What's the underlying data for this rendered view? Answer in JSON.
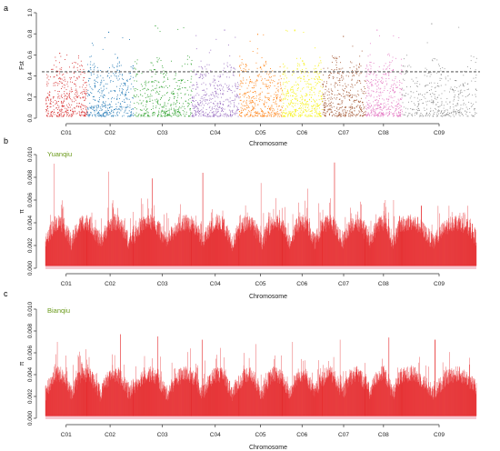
{
  "chart_data": [
    {
      "panel": "a",
      "type": "scatter",
      "xlabel": "Chromosome",
      "ylabel": "Fst",
      "ylim": [
        0,
        1.0
      ],
      "yticks": [
        0.0,
        0.2,
        0.4,
        0.6,
        0.8,
        1.0
      ],
      "threshold": 0.44,
      "categories": [
        "C01",
        "C02",
        "C03",
        "C04",
        "C05",
        "C06",
        "C07",
        "C08",
        "C09"
      ],
      "colors": [
        "#d62728",
        "#1f77b4",
        "#2ca02c",
        "#9467bd",
        "#ff7f0e",
        "#f5f000",
        "#a0522d",
        "#e377c2",
        "#8c8c8c"
      ],
      "series": [
        {
          "name": "C01",
          "range": [
            0.02,
            0.64
          ],
          "max": 0.62
        },
        {
          "name": "C02",
          "range": [
            0.02,
            0.85
          ],
          "max": 0.82
        },
        {
          "name": "C03",
          "range": [
            0.02,
            0.9
          ],
          "max": 0.88
        },
        {
          "name": "C04",
          "range": [
            0.02,
            0.85
          ],
          "max": 0.84
        },
        {
          "name": "C05",
          "range": [
            0.02,
            0.82
          ],
          "max": 0.8
        },
        {
          "name": "C06",
          "range": [
            0.02,
            0.85
          ],
          "max": 0.84
        },
        {
          "name": "C07",
          "range": [
            0.02,
            0.8
          ],
          "max": 0.78
        },
        {
          "name": "C08",
          "range": [
            0.02,
            0.85
          ],
          "max": 0.84
        },
        {
          "name": "C09",
          "range": [
            0.02,
            0.92
          ],
          "max": 0.9
        }
      ]
    },
    {
      "panel": "b",
      "type": "line",
      "population": "Yuanqiu",
      "xlabel": "Chromosome",
      "ylabel": "π",
      "ylim": [
        0,
        0.01
      ],
      "yticks": [
        "0.000",
        "0.002",
        "0.004",
        "0.006",
        "0.008",
        "0.010"
      ],
      "categories": [
        "C01",
        "C02",
        "C03",
        "C04",
        "C05",
        "C06",
        "C07",
        "C08",
        "C09"
      ],
      "series_color": "#e41a1c",
      "peaks": [
        0.0092,
        0.0085,
        0.0079,
        0.0084,
        0.0075,
        0.007,
        0.0093,
        0.006,
        0.0055
      ]
    },
    {
      "panel": "c",
      "type": "line",
      "population": "Bianqiu",
      "xlabel": "Chromosome",
      "ylabel": "π",
      "ylim": [
        0,
        0.01
      ],
      "yticks": [
        "0.000",
        "0.002",
        "0.004",
        "0.006",
        "0.008",
        "0.010"
      ],
      "categories": [
        "C01",
        "C02",
        "C03",
        "C04",
        "C05",
        "C06",
        "C07",
        "C08",
        "C09"
      ],
      "series_color": "#e41a1c",
      "peaks": [
        0.007,
        0.0077,
        0.0075,
        0.0072,
        0.0068,
        0.007,
        0.0072,
        0.0074,
        0.0072
      ]
    }
  ]
}
